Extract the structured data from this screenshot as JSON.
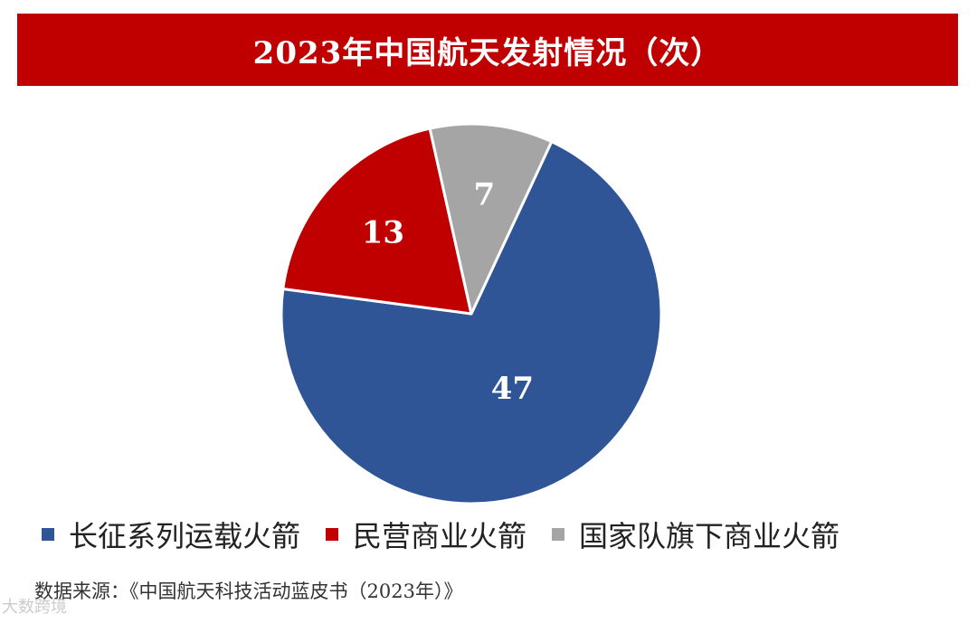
{
  "header": {
    "title": "2023年中国航天发射情况（次）"
  },
  "chart_data": {
    "type": "pie",
    "title": "2023年中国航天发射情况（次）",
    "slices": [
      {
        "label": "长征系列运载火箭",
        "value": 47,
        "color": "#2f5597"
      },
      {
        "label": "民营商业火箭",
        "value": 13,
        "color": "#c00000"
      },
      {
        "label": "国家队旗下商业火箭",
        "value": 7,
        "color": "#a5a5a5"
      }
    ],
    "data_labels": [
      "47",
      "13",
      "7"
    ],
    "legend_position": "bottom",
    "start_angle_deg": 25,
    "direction": "clockwise"
  },
  "legend": {
    "items": [
      {
        "label": "长征系列运载火箭",
        "color": "#2f5597"
      },
      {
        "label": "民营商业火箭",
        "color": "#c00000"
      },
      {
        "label": "国家队旗下商业火箭",
        "color": "#a5a5a5"
      }
    ]
  },
  "footer": {
    "source": "数据来源：《中国航天科技活动蓝皮书（2023年）》",
    "watermark": "大数跨境"
  }
}
